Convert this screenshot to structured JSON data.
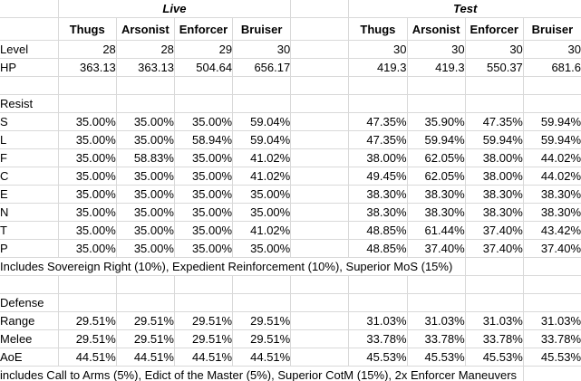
{
  "colors": {
    "gridline": "#d9d9d9",
    "border": "#000000",
    "text": "#000000",
    "background": "#ffffff"
  },
  "sheet": {
    "groups": {
      "live": "Live",
      "test": "Test"
    },
    "col_headers": [
      "Thugs",
      "Arsonist",
      "Enforcer",
      "Bruiser"
    ],
    "stats": {
      "level": {
        "label": "Level",
        "live": [
          "28",
          "28",
          "29",
          "30"
        ],
        "test": [
          "30",
          "30",
          "30",
          "30"
        ]
      },
      "hp": {
        "label": "HP",
        "live": [
          "363.13",
          "363.13",
          "504.64",
          "656.17"
        ],
        "test": [
          "419.3",
          "419.3",
          "550.37",
          "681.6"
        ]
      }
    },
    "resist": {
      "section_label": "Resist",
      "rows": [
        {
          "label": "S",
          "live": [
            "35.00%",
            "35.00%",
            "35.00%",
            "59.04%"
          ],
          "test": [
            "47.35%",
            "35.90%",
            "47.35%",
            "59.94%"
          ]
        },
        {
          "label": "L",
          "live": [
            "35.00%",
            "35.00%",
            "58.94%",
            "59.04%"
          ],
          "test": [
            "47.35%",
            "59.94%",
            "59.94%",
            "59.94%"
          ]
        },
        {
          "label": "F",
          "live": [
            "35.00%",
            "58.83%",
            "35.00%",
            "41.02%"
          ],
          "test": [
            "38.00%",
            "62.05%",
            "38.00%",
            "44.02%"
          ]
        },
        {
          "label": "C",
          "live": [
            "35.00%",
            "35.00%",
            "35.00%",
            "41.02%"
          ],
          "test": [
            "49.45%",
            "62.05%",
            "38.00%",
            "44.02%"
          ]
        },
        {
          "label": "E",
          "live": [
            "35.00%",
            "35.00%",
            "35.00%",
            "35.00%"
          ],
          "test": [
            "38.30%",
            "38.30%",
            "38.30%",
            "38.30%"
          ]
        },
        {
          "label": "N",
          "live": [
            "35.00%",
            "35.00%",
            "35.00%",
            "35.00%"
          ],
          "test": [
            "38.30%",
            "38.30%",
            "38.30%",
            "38.30%"
          ]
        },
        {
          "label": "T",
          "live": [
            "35.00%",
            "35.00%",
            "35.00%",
            "41.02%"
          ],
          "test": [
            "48.85%",
            "61.44%",
            "37.40%",
            "43.42%"
          ]
        },
        {
          "label": "P",
          "live": [
            "35.00%",
            "35.00%",
            "35.00%",
            "35.00%"
          ],
          "test": [
            "48.85%",
            "37.40%",
            "37.40%",
            "37.40%"
          ]
        }
      ],
      "note": "Includes Sovereign Right (10%), Expedient Reinforcement (10%), Superior MoS (15%)"
    },
    "defense": {
      "section_label": "Defense",
      "rows": [
        {
          "label": "Range",
          "live": [
            "29.51%",
            "29.51%",
            "29.51%",
            "29.51%"
          ],
          "test": [
            "31.03%",
            "31.03%",
            "31.03%",
            "31.03%"
          ]
        },
        {
          "label": "Melee",
          "live": [
            "29.51%",
            "29.51%",
            "29.51%",
            "29.51%"
          ],
          "test": [
            "33.78%",
            "33.78%",
            "33.78%",
            "33.78%"
          ]
        },
        {
          "label": "AoE",
          "live": [
            "44.51%",
            "44.51%",
            "44.51%",
            "44.51%"
          ],
          "test": [
            "45.53%",
            "45.53%",
            "45.53%",
            "45.53%"
          ]
        }
      ],
      "note": "includes Call to Arms (5%), Edict of the Master (5%), Superior CotM (15%), 2x Enforcer Maneuvers"
    }
  }
}
